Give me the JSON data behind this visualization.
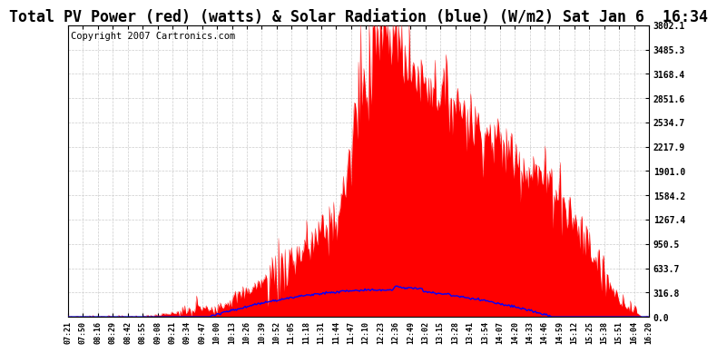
{
  "title": "Total PV Power (red) (watts) & Solar Radiation (blue) (W/m2) Sat Jan 6  16:34",
  "copyright_text": "Copyright 2007 Cartronics.com",
  "ymax": 3802.1,
  "yticks": [
    0.0,
    316.8,
    633.7,
    950.5,
    1267.4,
    1584.2,
    1901.0,
    2217.9,
    2534.7,
    2851.6,
    3168.4,
    3485.3,
    3802.1
  ],
  "ytick_labels": [
    "0.0",
    "316.8",
    "633.7",
    "950.5",
    "1267.4",
    "1584.2",
    "1901.0",
    "2217.9",
    "2534.7",
    "2851.6",
    "3168.4",
    "3485.3",
    "3802.1"
  ],
  "xtick_labels": [
    "07:21",
    "07:50",
    "08:16",
    "08:29",
    "08:42",
    "08:55",
    "09:08",
    "09:21",
    "09:34",
    "09:47",
    "10:00",
    "10:13",
    "10:26",
    "10:39",
    "10:52",
    "11:05",
    "11:18",
    "11:31",
    "11:44",
    "11:47",
    "12:10",
    "12:23",
    "12:36",
    "12:49",
    "13:02",
    "13:15",
    "13:28",
    "13:41",
    "13:54",
    "14:07",
    "14:20",
    "14:33",
    "14:46",
    "14:59",
    "15:12",
    "15:25",
    "15:38",
    "15:51",
    "16:04",
    "16:20"
  ],
  "bg_color": "#ffffff",
  "plot_bg_color": "#ffffff",
  "red_color": "#ff0000",
  "blue_color": "#0000ff",
  "grid_color": "#cccccc",
  "title_fontsize": 12,
  "copyright_fontsize": 7.5
}
